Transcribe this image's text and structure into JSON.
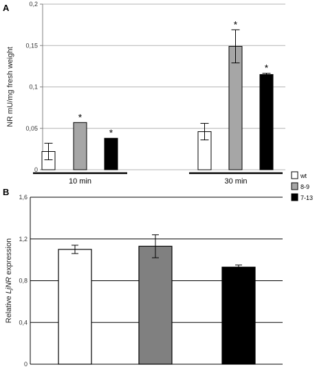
{
  "chart_data": [
    {
      "type": "bar",
      "panel_label": "A",
      "ylabel": "NR mU/mg fresh weight",
      "ylim": [
        0,
        0.2
      ],
      "yticks": [
        "0",
        "0,05",
        "0,1",
        "0,15",
        "0,2"
      ],
      "grid": true,
      "categories": [
        "10 min",
        "30 min"
      ],
      "series": [
        {
          "name": "wt",
          "color": "#ffffff",
          "values": [
            0.022,
            0.046
          ],
          "errors": [
            0.01,
            0.01
          ],
          "significant": [
            false,
            false
          ]
        },
        {
          "name": "8-9",
          "color": "#a6a6a6",
          "values": [
            0.057,
            0.149
          ],
          "errors": [
            0.0,
            0.02
          ],
          "significant": [
            true,
            true
          ]
        },
        {
          "name": "7-13",
          "color": "#000000",
          "values": [
            0.038,
            0.115
          ],
          "errors": [
            0.0,
            0.0015
          ],
          "significant": [
            true,
            true
          ]
        }
      ],
      "significance_marker": "*",
      "legend": {
        "placement": "right",
        "entries": [
          "wt",
          "8-9",
          "7-13"
        ]
      }
    },
    {
      "type": "bar",
      "panel_label": "B",
      "ylabel_prefix": "Relative ",
      "ylabel_gene": "LjNR",
      "ylabel_suffix": " expression",
      "ylim": [
        0,
        1.6
      ],
      "yticks": [
        "0",
        "0,4",
        "0,8",
        "1,2",
        "1,6"
      ],
      "grid": true,
      "bars": [
        {
          "name": "wt",
          "color": "#ffffff",
          "value": 1.1,
          "error": 0.04
        },
        {
          "name": "8-9",
          "color": "#808080",
          "value": 1.13,
          "error": 0.11
        },
        {
          "name": "7-13",
          "color": "#000000",
          "value": 0.93,
          "error": 0.02
        }
      ]
    }
  ]
}
